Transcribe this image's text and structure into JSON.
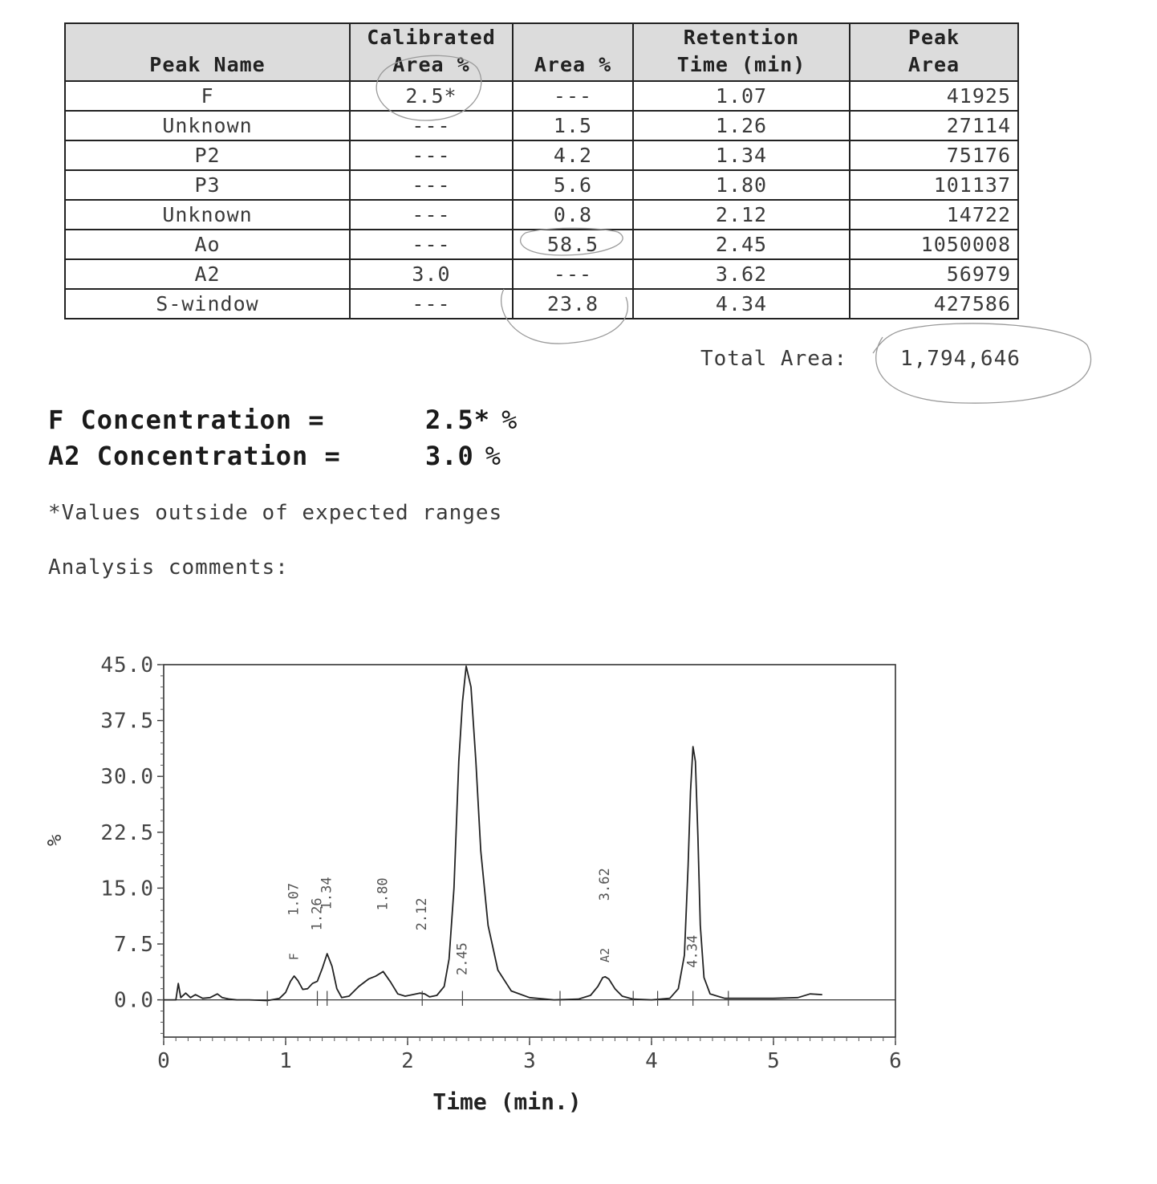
{
  "table": {
    "headers": [
      [
        "Peak Name"
      ],
      [
        "Calibrated",
        "Area %"
      ],
      [
        "Area %"
      ],
      [
        "Retention",
        "Time (min)"
      ],
      [
        "Peak",
        "Area"
      ]
    ],
    "rows": [
      [
        "F",
        "2.5*",
        "---",
        "1.07",
        "41925"
      ],
      [
        "Unknown",
        "---",
        "1.5",
        "1.26",
        "27114"
      ],
      [
        "P2",
        "---",
        "4.2",
        "1.34",
        "75176"
      ],
      [
        "P3",
        "---",
        "5.6",
        "1.80",
        "101137"
      ],
      [
        "Unknown",
        "---",
        "0.8",
        "2.12",
        "14722"
      ],
      [
        "Ao",
        "---",
        "58.5",
        "2.45",
        "1050008"
      ],
      [
        "A2",
        "3.0",
        "---",
        "3.62",
        "56979"
      ],
      [
        "S-window",
        "---",
        "23.8",
        "4.34",
        "427586"
      ]
    ]
  },
  "total": {
    "label": "Total Area:",
    "value": "1,794,646"
  },
  "concentrations": [
    {
      "label": "F Concentration =",
      "value": "2.5*",
      "unit": "%"
    },
    {
      "label": "A2 Concentration =",
      "value": "3.0",
      "unit": "%"
    }
  ],
  "footnote": "*Values outside of expected ranges",
  "comments_label": "Analysis comments:",
  "chart_data": {
    "type": "line",
    "xlabel": "Time (min.)",
    "ylabel": "%",
    "xlim": [
      0,
      6
    ],
    "ylim": [
      -5,
      45
    ],
    "x_ticks": [
      "0",
      "1",
      "2",
      "3",
      "4",
      "5",
      "6"
    ],
    "y_ticks": [
      "0.0",
      "7.5",
      "15.0",
      "22.5",
      "30.0",
      "37.5",
      "45.0"
    ],
    "series": [
      {
        "x": [
          0.0,
          0.1,
          0.12,
          0.14,
          0.18,
          0.22,
          0.26,
          0.32,
          0.38,
          0.44,
          0.48,
          0.54,
          0.6,
          0.7,
          0.85,
          0.95,
          1.0,
          1.04,
          1.07,
          1.1,
          1.14,
          1.18,
          1.22,
          1.26,
          1.3,
          1.34,
          1.38,
          1.42,
          1.46,
          1.52,
          1.6,
          1.68,
          1.74,
          1.8,
          1.86,
          1.92,
          1.98,
          2.04,
          2.1,
          2.14,
          2.18,
          2.24,
          2.3,
          2.34,
          2.38,
          2.42,
          2.45,
          2.48,
          2.52,
          2.56,
          2.6,
          2.66,
          2.74,
          2.85,
          3.0,
          3.2,
          3.4,
          3.5,
          3.56,
          3.6,
          3.62,
          3.65,
          3.7,
          3.76,
          3.85,
          4.0,
          4.15,
          4.22,
          4.27,
          4.3,
          4.32,
          4.34,
          4.36,
          4.38,
          4.4,
          4.43,
          4.48,
          4.6,
          4.8,
          5.0,
          5.2,
          5.3,
          5.4
        ],
        "y": [
          0.0,
          0.0,
          2.2,
          0.3,
          0.9,
          0.3,
          0.7,
          0.2,
          0.3,
          0.8,
          0.3,
          0.1,
          0.0,
          0.0,
          -0.1,
          0.2,
          1.0,
          2.5,
          3.2,
          2.6,
          1.4,
          1.5,
          2.2,
          2.5,
          4.2,
          6.2,
          4.5,
          1.5,
          0.3,
          0.5,
          1.8,
          2.8,
          3.2,
          3.8,
          2.4,
          0.8,
          0.5,
          0.7,
          0.9,
          0.8,
          0.4,
          0.6,
          1.8,
          5.5,
          15.0,
          32.0,
          40.0,
          44.8,
          42.0,
          32.0,
          20.0,
          10.0,
          4.0,
          1.2,
          0.3,
          0.0,
          0.1,
          0.6,
          1.8,
          3.0,
          3.1,
          2.8,
          1.5,
          0.5,
          0.1,
          0.0,
          0.2,
          1.5,
          6.0,
          18.0,
          28.0,
          34.0,
          32.0,
          22.0,
          10.0,
          3.0,
          0.8,
          0.2,
          0.2,
          0.2,
          0.3,
          0.8,
          0.7
        ]
      }
    ],
    "peak_labels": [
      {
        "t": 1.07,
        "text": "1.07",
        "name": "F"
      },
      {
        "t": 1.26,
        "text": "1.26"
      },
      {
        "t": 1.34,
        "text": "1.34"
      },
      {
        "t": 1.8,
        "text": "1.80"
      },
      {
        "t": 2.12,
        "text": "2.12"
      },
      {
        "t": 2.45,
        "text": "2.45"
      },
      {
        "t": 3.62,
        "text": "3.62",
        "name": "A2"
      },
      {
        "t": 4.34,
        "text": "4.34"
      }
    ]
  }
}
